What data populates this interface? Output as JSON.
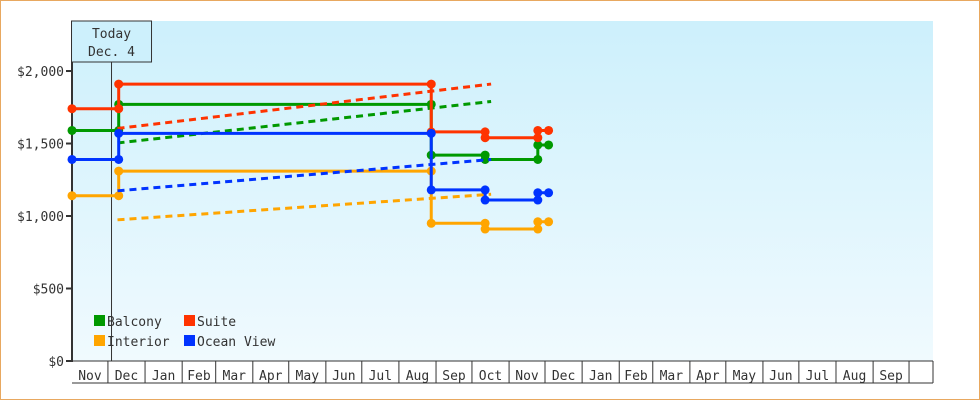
{
  "chart_data": {
    "type": "line",
    "title": "",
    "xlabel": "",
    "ylabel": "",
    "ylim": [
      0,
      2345
    ],
    "yticks": [
      0,
      500,
      1000,
      1500,
      2000
    ],
    "ytick_labels": [
      "$0",
      "$500",
      "$1,000",
      "$1,500",
      "$2,000"
    ],
    "x_start": "Nov 1",
    "x_end": "Oct 17",
    "month_labels": [
      "Nov",
      "Dec",
      "Jan",
      "Feb",
      "Mar",
      "Apr",
      "May",
      "Jun",
      "Jul",
      "Aug",
      "Sep",
      "Oct",
      "Nov",
      "Dec",
      "Jan",
      "Feb",
      "Mar",
      "Apr",
      "May",
      "Jun",
      "Jul",
      "Aug",
      "Sep",
      ""
    ],
    "grid": false,
    "background": [
      "#cdf0fc",
      "#f0fafe"
    ],
    "today": {
      "date": "Dec 4",
      "label_line1": "Today",
      "label_line2": "Dec. 4"
    },
    "legend_placement": "bottom-left",
    "series": [
      {
        "name": "Balcony",
        "color": "#009900",
        "steps": [
          {
            "from": "Nov 1",
            "y": 1590
          },
          {
            "from": "Dec 10",
            "y": 1770
          },
          {
            "from": "Aug 28",
            "y": 1420
          },
          {
            "from": "Oct 12",
            "y": 1390
          },
          {
            "from": "Nov 25",
            "y": 1490
          }
        ],
        "forecast": [
          {
            "date": "Dec 4",
            "y": 1490
          },
          {
            "date": "Oct 17",
            "y": 1790
          }
        ]
      },
      {
        "name": "Suite",
        "color": "#ff3300",
        "steps": [
          {
            "from": "Nov 1",
            "y": 1740
          },
          {
            "from": "Dec 10",
            "y": 1910
          },
          {
            "from": "Aug 28",
            "y": 1580
          },
          {
            "from": "Oct 12",
            "y": 1540
          },
          {
            "from": "Nov 25",
            "y": 1590
          }
        ],
        "forecast": [
          {
            "date": "Dec 4",
            "y": 1590
          },
          {
            "date": "Oct 17",
            "y": 1910
          }
        ]
      },
      {
        "name": "Interior",
        "color": "#ffa500",
        "steps": [
          {
            "from": "Nov 1",
            "y": 1140
          },
          {
            "from": "Dec 10",
            "y": 1310
          },
          {
            "from": "Aug 28",
            "y": 950
          },
          {
            "from": "Oct 12",
            "y": 910
          },
          {
            "from": "Nov 25",
            "y": 960
          }
        ],
        "forecast": [
          {
            "date": "Dec 4",
            "y": 960
          },
          {
            "date": "Oct 17",
            "y": 1150
          }
        ]
      },
      {
        "name": "Ocean View",
        "color": "#0033ff",
        "steps": [
          {
            "from": "Nov 1",
            "y": 1390
          },
          {
            "from": "Dec 10",
            "y": 1570
          },
          {
            "from": "Aug 28",
            "y": 1180
          },
          {
            "from": "Oct 12",
            "y": 1110
          },
          {
            "from": "Nov 25",
            "y": 1160
          }
        ],
        "forecast": [
          {
            "date": "Dec 4",
            "y": 1160
          },
          {
            "date": "Oct 17",
            "y": 1390
          }
        ]
      }
    ]
  }
}
